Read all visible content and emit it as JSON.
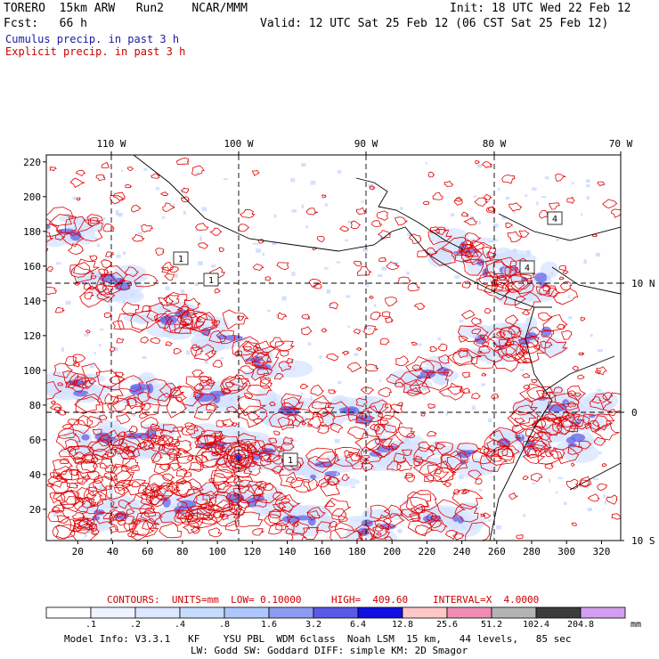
{
  "header": {
    "line1_left": "TORERO  15km ARW   Run2    NCAR/MMM",
    "line1_right": "Init: 18 UTC Wed 22 Feb 12",
    "line2_left": "Fcst:   66 h",
    "line2_right": "Valid: 12 UTC Sat 25 Feb 12 (06 CST Sat 25 Feb 12)",
    "line3": "Cumulus precip. in past 3 h",
    "line4": "Explicit precip. in past 3 h"
  },
  "map": {
    "top_lon_labels": [
      "110 W",
      "100 W",
      "90 W",
      "80 W",
      "70 W"
    ],
    "right_lat_labels": [
      "10 N",
      "0",
      "10 S"
    ],
    "left_y_ticks": [
      "220",
      "200",
      "180",
      "160",
      "140",
      "120",
      "100",
      "80",
      "60",
      "40",
      "20"
    ],
    "bottom_x_ticks": [
      "20",
      "40",
      "60",
      "80",
      "100",
      "120",
      "140",
      "160",
      "180",
      "200",
      "220",
      "240",
      "260",
      "280",
      "300",
      "320"
    ],
    "contour_markers": [
      "1",
      "1",
      "1",
      "4",
      "4"
    ]
  },
  "contours_line": {
    "label": "CONTOURS:  UNITS=mm  LOW= 0.10000",
    "high": "HIGH=  409.60",
    "interval": "INTERVAL=X  4.0000"
  },
  "legend": {
    "values": [
      ".1",
      ".2",
      ".4",
      ".8",
      "1.6",
      "3.2",
      "6.4",
      "12.8",
      "25.6",
      "51.2",
      "102.4",
      "204.8"
    ],
    "unit": "mm",
    "colors": [
      "#ffffff",
      "#eef4ff",
      "#dce8ff",
      "#c6dcff",
      "#aec8ff",
      "#8c9cf2",
      "#5a5ae6",
      "#1010e0",
      "#ffc8c8",
      "#f08cb4",
      "#b4b4b4",
      "#3c3c3c",
      "#d2a0f0"
    ]
  },
  "footer": {
    "line1": "Model Info: V3.3.1   KF    YSU PBL  WDM 6class  Noah LSM  15 km,   44 levels,   85 sec",
    "line2": "LW: Godd SW: Goddard DIFF: simple KM: 2D Smagor"
  }
}
